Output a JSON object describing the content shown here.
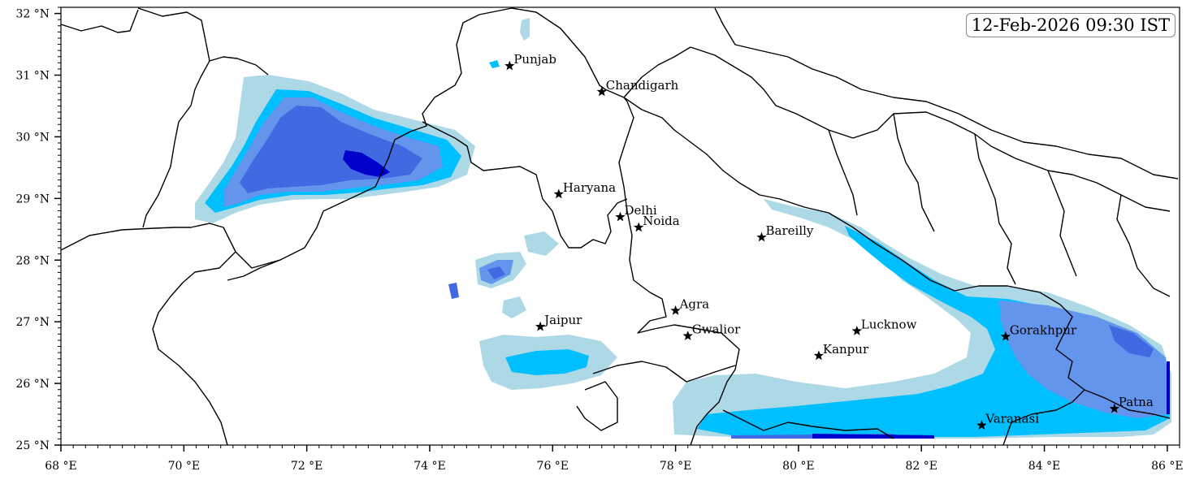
{
  "timestamp": "12-Feb-2026 09:30 IST",
  "axes": {
    "lon_ticks": [
      "68 °E",
      "70 °E",
      "72 °E",
      "74 °E",
      "76 °E",
      "78 °E",
      "80 °E",
      "82 °E",
      "84 °E",
      "86 °E"
    ],
    "lat_ticks": [
      "32 °N",
      "31 °N",
      "30 °N",
      "29 °N",
      "28 °N",
      "27 °N",
      "26 °N",
      "25 °N"
    ]
  },
  "cities": [
    {
      "name": "Punjab",
      "lon": 75.3,
      "lat": 31.15
    },
    {
      "name": "Chandigarh",
      "lon": 76.8,
      "lat": 30.73
    },
    {
      "name": "Haryana",
      "lon": 76.1,
      "lat": 29.07
    },
    {
      "name": "Delhi",
      "lon": 77.1,
      "lat": 28.7
    },
    {
      "name": "Noida",
      "lon": 77.4,
      "lat": 28.53
    },
    {
      "name": "Bareilly",
      "lon": 79.4,
      "lat": 28.37
    },
    {
      "name": "Agra",
      "lon": 78.0,
      "lat": 27.18
    },
    {
      "name": "Jaipur",
      "lon": 75.8,
      "lat": 26.92
    },
    {
      "name": "Gwalior",
      "lon": 78.2,
      "lat": 26.77
    },
    {
      "name": "Lucknow",
      "lon": 80.95,
      "lat": 26.85
    },
    {
      "name": "Kanpur",
      "lon": 80.33,
      "lat": 26.45
    },
    {
      "name": "Gorakhpur",
      "lon": 83.37,
      "lat": 26.76
    },
    {
      "name": "Patna",
      "lon": 85.14,
      "lat": 25.59
    },
    {
      "name": "Varanasi",
      "lon": 82.98,
      "lat": 25.32
    }
  ],
  "colors": {
    "level_1": "#add8e6",
    "level_2": "#00bfff",
    "level_3": "#6495ed",
    "level_4": "#4169e1",
    "level_5": "#0000cd",
    "border": "#000000"
  }
}
